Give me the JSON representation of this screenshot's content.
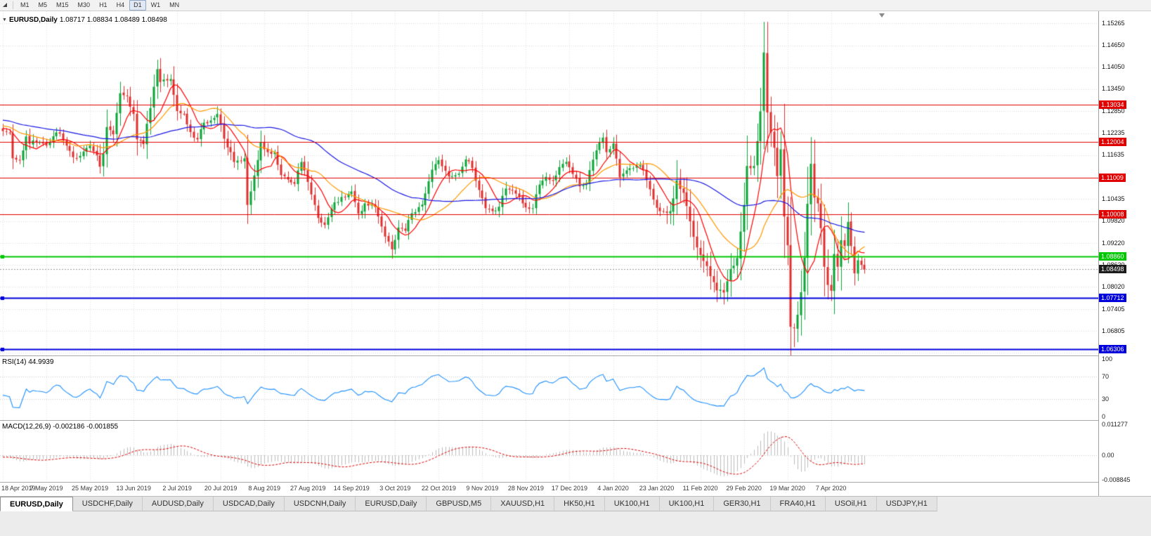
{
  "toolbar": {
    "timeframes": [
      {
        "label": "M1"
      },
      {
        "label": "M5"
      },
      {
        "label": "M15"
      },
      {
        "label": "M30"
      },
      {
        "label": "H1"
      },
      {
        "label": "H4"
      },
      {
        "label": "D1",
        "active": true
      },
      {
        "label": "W1"
      },
      {
        "label": "MN"
      }
    ]
  },
  "chart": {
    "title_symbol": "EURUSD,Daily",
    "title_ohlc": "1.08717 1.08834 1.08489 1.08498"
  },
  "chart_data": {
    "type": "candlestick",
    "symbol": "EURUSD",
    "timeframe": "Daily",
    "bars": 258,
    "current": {
      "open": 1.08717,
      "high": 1.08834,
      "low": 1.08489,
      "close": 1.08498
    },
    "colors": {
      "up": "#0CA437",
      "down": "#DF3030",
      "grid": "#DADADA",
      "vgrid": "#E4E4E4",
      "ma_fast": "#FF0000",
      "ma_mid": "#FF9900",
      "ma_slow": "#1A1AE6",
      "rsi": "#1E90FF",
      "rsi_level": "#C8C8C8",
      "macd_hist": "#BDBDBD",
      "macd_signal": "#E00000",
      "hline_red": "#E10000",
      "hline_green": "#00C800",
      "hline_blue": "#0000DD",
      "bid_line": "#9A9A9A",
      "bid_badge": "#1C1C1C"
    },
    "price_scale_labels": [
      "1.15265",
      "1.14650",
      "1.14050",
      "1.13450",
      "1.12850",
      "1.12235",
      "1.11635",
      "1.10435",
      "1.09820",
      "1.09220",
      "1.08620",
      "1.08020",
      "1.07405",
      "1.06805"
    ],
    "hidden_grid_levels": [
      1.06205
    ],
    "hlines": [
      {
        "price": 1.13034,
        "label": "1.13034",
        "type": "red"
      },
      {
        "price": 1.12004,
        "label": "1.12004",
        "type": "red"
      },
      {
        "price": 1.11009,
        "label": "1.11009",
        "type": "red"
      },
      {
        "price": 1.10008,
        "label": "1.10008",
        "type": "red"
      },
      {
        "price": 1.0886,
        "label": "1.08860",
        "type": "green"
      },
      {
        "price": 1.07712,
        "label": "1.07712",
        "type": "blue"
      },
      {
        "price": 1.06306,
        "label": "1.06306",
        "type": "blue"
      }
    ],
    "bid": {
      "price": 1.08498,
      "label": "1.08498"
    },
    "moving_averages": [
      {
        "period": 8,
        "color_key": "ma_fast"
      },
      {
        "period": 20,
        "color_key": "ma_mid"
      },
      {
        "period": 50,
        "color_key": "ma_slow"
      }
    ],
    "close_anchors": [
      [
        0,
        1.123
      ],
      [
        2,
        1.1225
      ],
      [
        3,
        1.1155
      ],
      [
        5,
        1.115
      ],
      [
        7,
        1.1215
      ],
      [
        8,
        1.1195
      ],
      [
        10,
        1.12
      ],
      [
        13,
        1.119
      ],
      [
        15,
        1.1216
      ],
      [
        17,
        1.1223
      ],
      [
        21,
        1.1158
      ],
      [
        23,
        1.1162
      ],
      [
        26,
        1.119
      ],
      [
        28,
        1.1163
      ],
      [
        29,
        1.1132
      ],
      [
        30,
        1.1168
      ],
      [
        31,
        1.1241
      ],
      [
        33,
        1.1221
      ],
      [
        35,
        1.1334
      ],
      [
        37,
        1.1326
      ],
      [
        39,
        1.1277
      ],
      [
        40,
        1.1207
      ],
      [
        42,
        1.1194
      ],
      [
        44,
        1.1293
      ],
      [
        46,
        1.14
      ],
      [
        47,
        1.1365
      ],
      [
        49,
        1.1369
      ],
      [
        50,
        1.1373
      ],
      [
        52,
        1.1285
      ],
      [
        54,
        1.1277
      ],
      [
        56,
        1.1227
      ],
      [
        58,
        1.1207
      ],
      [
        60,
        1.1253
      ],
      [
        62,
        1.1259
      ],
      [
        64,
        1.1277
      ],
      [
        66,
        1.1209
      ],
      [
        69,
        1.1145
      ],
      [
        72,
        1.1155
      ],
      [
        73,
        1.1027
      ],
      [
        75,
        1.1108
      ],
      [
        77,
        1.12
      ],
      [
        78,
        1.118
      ],
      [
        81,
        1.1171
      ],
      [
        83,
        1.1109
      ],
      [
        87,
        1.1085
      ],
      [
        89,
        1.1145
      ],
      [
        91,
        1.109
      ],
      [
        94,
        1.0991
      ],
      [
        96,
        1.0972
      ],
      [
        99,
        1.1034
      ],
      [
        102,
        1.1049
      ],
      [
        104,
        1.1064
      ],
      [
        106,
        1.1003
      ],
      [
        108,
        1.1031
      ],
      [
        111,
        1.1021
      ],
      [
        114,
        1.094
      ],
      [
        116,
        1.0905
      ],
      [
        118,
        1.0965
      ],
      [
        120,
        1.0956
      ],
      [
        122,
        1.1004
      ],
      [
        125,
        1.1028
      ],
      [
        128,
        1.1124
      ],
      [
        130,
        1.115
      ],
      [
        133,
        1.1105
      ],
      [
        136,
        1.1113
      ],
      [
        138,
        1.1152
      ],
      [
        140,
        1.1128
      ],
      [
        142,
        1.1068
      ],
      [
        144,
        1.1018
      ],
      [
        146,
        1.101
      ],
      [
        148,
        1.1022
      ],
      [
        150,
        1.1072
      ],
      [
        153,
        1.1058
      ],
      [
        156,
        1.102
      ],
      [
        158,
        1.1018
      ],
      [
        160,
        1.1083
      ],
      [
        162,
        1.1104
      ],
      [
        164,
        1.1093
      ],
      [
        166,
        1.1131
      ],
      [
        168,
        1.1145
      ],
      [
        170,
        1.1112
      ],
      [
        172,
        1.1078
      ],
      [
        174,
        1.1087
      ],
      [
        177,
        1.1177
      ],
      [
        179,
        1.1212
      ],
      [
        180,
        1.1172
      ],
      [
        182,
        1.1196
      ],
      [
        184,
        1.1103
      ],
      [
        186,
        1.1122
      ],
      [
        188,
        1.1128
      ],
      [
        190,
        1.1136
      ],
      [
        192,
        1.1095
      ],
      [
        195,
        1.1019
      ],
      [
        197,
        1.101
      ],
      [
        199,
        1.101
      ],
      [
        201,
        1.1094
      ],
      [
        203,
        1.106
      ],
      [
        205,
        1.0982
      ],
      [
        207,
        1.091
      ],
      [
        209,
        1.0873
      ],
      [
        211,
        1.0831
      ],
      [
        213,
        1.0792
      ],
      [
        215,
        1.0786
      ],
      [
        217,
        1.0851
      ],
      [
        219,
        1.0881
      ],
      [
        221,
        1.1027
      ],
      [
        222,
        1.1134
      ],
      [
        224,
        1.1134
      ],
      [
        226,
        1.1284
      ],
      [
        227,
        1.1446
      ],
      [
        228,
        1.1281
      ],
      [
        230,
        1.1184
      ],
      [
        231,
        1.1106
      ],
      [
        232,
        1.118
      ],
      [
        233,
        1.0995
      ],
      [
        234,
        1.0916
      ],
      [
        235,
        1.0692
      ],
      [
        236,
        1.0688
      ],
      [
        237,
        1.0725
      ],
      [
        238,
        1.0787
      ],
      [
        239,
        1.0882
      ],
      [
        240,
        1.103
      ],
      [
        241,
        1.114
      ],
      [
        242,
        1.1047
      ],
      [
        243,
        1.1031
      ],
      [
        244,
        1.0963
      ],
      [
        245,
        1.0857
      ],
      [
        246,
        1.0807
      ],
      [
        247,
        1.0791
      ],
      [
        248,
        1.0892
      ],
      [
        249,
        1.0857
      ],
      [
        250,
        1.093
      ],
      [
        251,
        1.0914
      ],
      [
        252,
        1.098
      ],
      [
        253,
        1.0914
      ],
      [
        254,
        1.0839
      ],
      [
        255,
        1.0875
      ],
      [
        256,
        1.0862
      ],
      [
        257,
        1.085
      ]
    ],
    "wick_overrides": [
      {
        "bar": 35,
        "high": 1.1348
      },
      {
        "bar": 46,
        "high": 1.1412
      },
      {
        "bar": 116,
        "low": 1.0879
      },
      {
        "bar": 215,
        "low": 1.0777
      },
      {
        "bar": 227,
        "high": 1.1495
      },
      {
        "bar": 236,
        "low": 1.0636
      },
      {
        "bar": 241,
        "high": 1.1148
      }
    ],
    "date_labels": [
      {
        "bar": 0,
        "text": "18 Apr 2019"
      },
      {
        "bar": 13,
        "text": "7 May 2019"
      },
      {
        "bar": 26,
        "text": "25 May 2019"
      },
      {
        "bar": 39,
        "text": "13 Jun 2019"
      },
      {
        "bar": 52,
        "text": "2 Jul 2019"
      },
      {
        "bar": 65,
        "text": "20 Jul 2019"
      },
      {
        "bar": 78,
        "text": "8 Aug 2019"
      },
      {
        "bar": 91,
        "text": "27 Aug 2019"
      },
      {
        "bar": 104,
        "text": "14 Sep 2019"
      },
      {
        "bar": 117,
        "text": "3 Oct 2019"
      },
      {
        "bar": 130,
        "text": "22 Oct 2019"
      },
      {
        "bar": 143,
        "text": "9 Nov 2019"
      },
      {
        "bar": 156,
        "text": "28 Nov 2019"
      },
      {
        "bar": 169,
        "text": "17 Dec 2019"
      },
      {
        "bar": 182,
        "text": "4 Jan 2020"
      },
      {
        "bar": 195,
        "text": "23 Jan 2020"
      },
      {
        "bar": 208,
        "text": "11 Feb 2020"
      },
      {
        "bar": 221,
        "text": "29 Feb 2020"
      },
      {
        "bar": 234,
        "text": "19 Mar 2020"
      },
      {
        "bar": 247,
        "text": "7 Apr 2020"
      }
    ]
  },
  "rsi_pane": {
    "label": "RSI(14) 44.9939",
    "period": 14,
    "value": 44.9939,
    "scale_labels": [
      {
        "value": 100,
        "text": "100"
      },
      {
        "value": 70,
        "text": "70"
      },
      {
        "value": 30,
        "text": "30"
      },
      {
        "value": 0,
        "text": "0"
      }
    ],
    "levels": [
      70,
      30
    ]
  },
  "macd_pane": {
    "label": "MACD(12,26,9) -0.002186 -0.001855",
    "fast": 12,
    "slow": 26,
    "signal": 9,
    "value": -0.002186,
    "signal_value": -0.001855,
    "scale_labels": [
      {
        "value": 0.011277,
        "text": "0.011277"
      },
      {
        "value": 0,
        "text": "0.00"
      },
      {
        "value": -0.008845,
        "text": "-0.008845"
      }
    ]
  },
  "tabs": [
    {
      "label": "EURUSD,Daily",
      "active": true
    },
    {
      "label": "USDCHF,Daily"
    },
    {
      "label": "AUDUSD,Daily"
    },
    {
      "label": "USDCAD,Daily"
    },
    {
      "label": "USDCNH,Daily"
    },
    {
      "label": "EURUSD,Daily"
    },
    {
      "label": "GBPUSD,M5"
    },
    {
      "label": "XAUUSD,H1"
    },
    {
      "label": "HK50,H1"
    },
    {
      "label": "UK100,H1"
    },
    {
      "label": "UK100,H1"
    },
    {
      "label": "GER30,H1"
    },
    {
      "label": "FRA40,H1"
    },
    {
      "label": "USOil,H1"
    },
    {
      "label": "USDJPY,H1"
    }
  ]
}
